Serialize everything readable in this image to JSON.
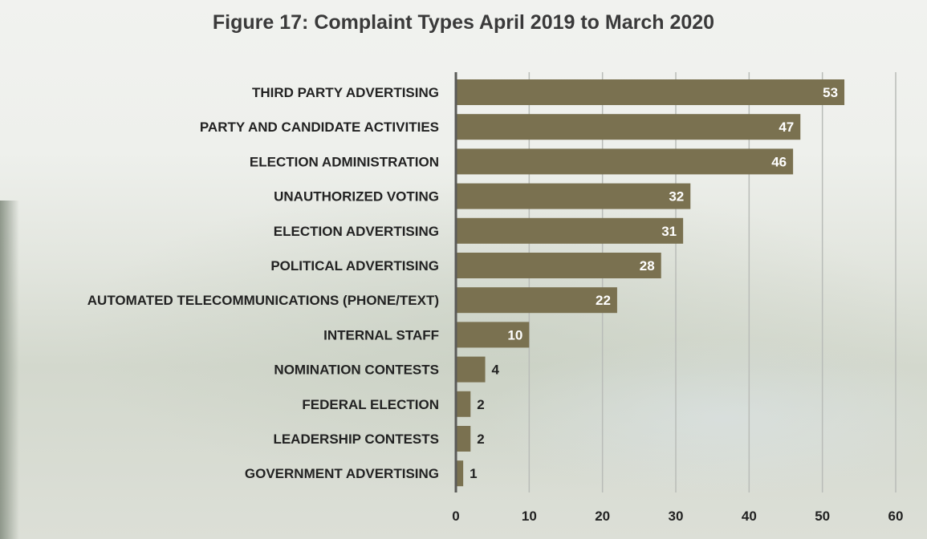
{
  "chart_data": {
    "type": "bar",
    "orientation": "horizontal",
    "title": "Figure 17: Complaint Types April 2019 to March 2020",
    "xlabel": "",
    "ylabel": "",
    "xlim": [
      0,
      60
    ],
    "xticks": [
      "0",
      "10",
      "20",
      "30",
      "40",
      "50",
      "60"
    ],
    "grid": true,
    "bar_color": "#7a7150",
    "categories": [
      "THIRD PARTY ADVERTISING",
      "PARTY AND CANDIDATE ACTIVITIES",
      "ELECTION ADMINISTRATION",
      "UNAUTHORIZED VOTING",
      "ELECTION ADVERTISING",
      "POLITICAL ADVERTISING",
      "AUTOMATED TELECOMMUNICATIONS (PHONE/TEXT)",
      "INTERNAL STAFF",
      "NOMINATION CONTESTS",
      "FEDERAL ELECTION",
      "LEADERSHIP CONTESTS",
      "GOVERNMENT ADVERTISING"
    ],
    "values": [
      53,
      47,
      46,
      32,
      31,
      28,
      22,
      10,
      4,
      2,
      2,
      1
    ],
    "value_labels": [
      "53",
      "47",
      "46",
      "32",
      "31",
      "28",
      "22",
      "10",
      "4",
      "2",
      "2",
      "1"
    ]
  }
}
